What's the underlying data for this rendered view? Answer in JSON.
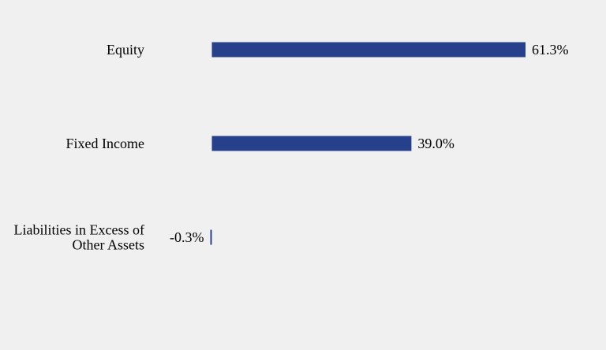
{
  "chart_data": {
    "type": "bar",
    "orientation": "horizontal",
    "categories": [
      [
        "Equity"
      ],
      [
        "Fixed Income"
      ],
      [
        "Liabilities in Excess of",
        "Other Assets"
      ]
    ],
    "values": [
      61.3,
      39.0,
      -0.3
    ],
    "value_labels": [
      "61.3%",
      "39.0%",
      "-0.3%"
    ],
    "unit": "%",
    "title": "",
    "xlabel": "",
    "ylabel": "",
    "grid": false,
    "legend": false
  },
  "colors": {
    "bar": "#27408b",
    "background": "#f0f0f0",
    "text": "#000000"
  }
}
